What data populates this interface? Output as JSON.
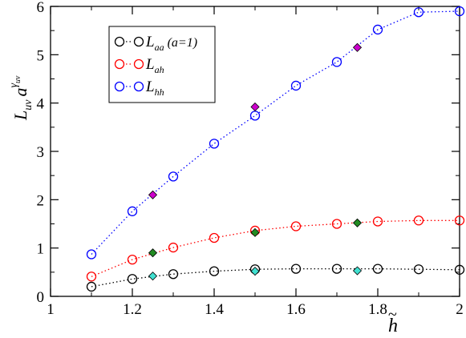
{
  "chart_data": {
    "type": "scatter",
    "title": "",
    "xlabel": "h̃",
    "ylabel": "L_uv a^γ_uv",
    "xlim": [
      1,
      2
    ],
    "ylim": [
      0,
      6
    ],
    "xticks": [
      "1",
      "1.2",
      "1.4",
      "1.6",
      "1.8",
      "2"
    ],
    "yticks": [
      "0",
      "1",
      "2",
      "3",
      "4",
      "5",
      "6"
    ],
    "grid": false,
    "legend_position": "top-left",
    "series": [
      {
        "name": "L_aa (a=1)",
        "color": "#000000",
        "x": [
          1.1,
          1.2,
          1.3,
          1.4,
          1.5,
          1.6,
          1.7,
          1.8,
          1.9,
          2.0
        ],
        "y": [
          0.2,
          0.36,
          0.46,
          0.52,
          0.56,
          0.57,
          0.57,
          0.57,
          0.56,
          0.55
        ],
        "diamonds": {
          "color": "#40e0d0",
          "x": [
            1.25,
            1.5,
            1.75
          ],
          "y": [
            0.42,
            0.52,
            0.53
          ]
        }
      },
      {
        "name": "L_ah",
        "color": "#ff0000",
        "x": [
          1.1,
          1.2,
          1.3,
          1.4,
          1.5,
          1.6,
          1.7,
          1.8,
          1.9,
          2.0
        ],
        "y": [
          0.41,
          0.76,
          1.01,
          1.21,
          1.36,
          1.45,
          1.5,
          1.55,
          1.57,
          1.57
        ],
        "diamonds": {
          "color": "#228b22",
          "x": [
            1.25,
            1.5,
            1.75
          ],
          "y": [
            0.9,
            1.32,
            1.52
          ]
        }
      },
      {
        "name": "L_hh",
        "color": "#0000ff",
        "x": [
          1.1,
          1.2,
          1.3,
          1.4,
          1.5,
          1.6,
          1.7,
          1.8,
          1.9,
          2.0
        ],
        "y": [
          0.87,
          1.76,
          2.48,
          3.16,
          3.74,
          4.36,
          4.85,
          5.52,
          5.88,
          5.9
        ],
        "diamonds": {
          "color": "#cc00cc",
          "x": [
            1.25,
            1.5,
            1.75
          ],
          "y": [
            2.1,
            3.92,
            5.15
          ]
        }
      }
    ]
  },
  "legend": [
    {
      "main": "L",
      "sub": "aa",
      "suffix": " (a=1)"
    },
    {
      "main": "L",
      "sub": "ah",
      "suffix": ""
    },
    {
      "main": "L",
      "sub": "hh",
      "suffix": ""
    }
  ],
  "axis_labels": {
    "y_main": "L",
    "y_sub": "uv",
    "y_a": "a",
    "y_sup": "γ",
    "y_supsub": "uv",
    "x_main": "h",
    "x_tilde": "~"
  }
}
